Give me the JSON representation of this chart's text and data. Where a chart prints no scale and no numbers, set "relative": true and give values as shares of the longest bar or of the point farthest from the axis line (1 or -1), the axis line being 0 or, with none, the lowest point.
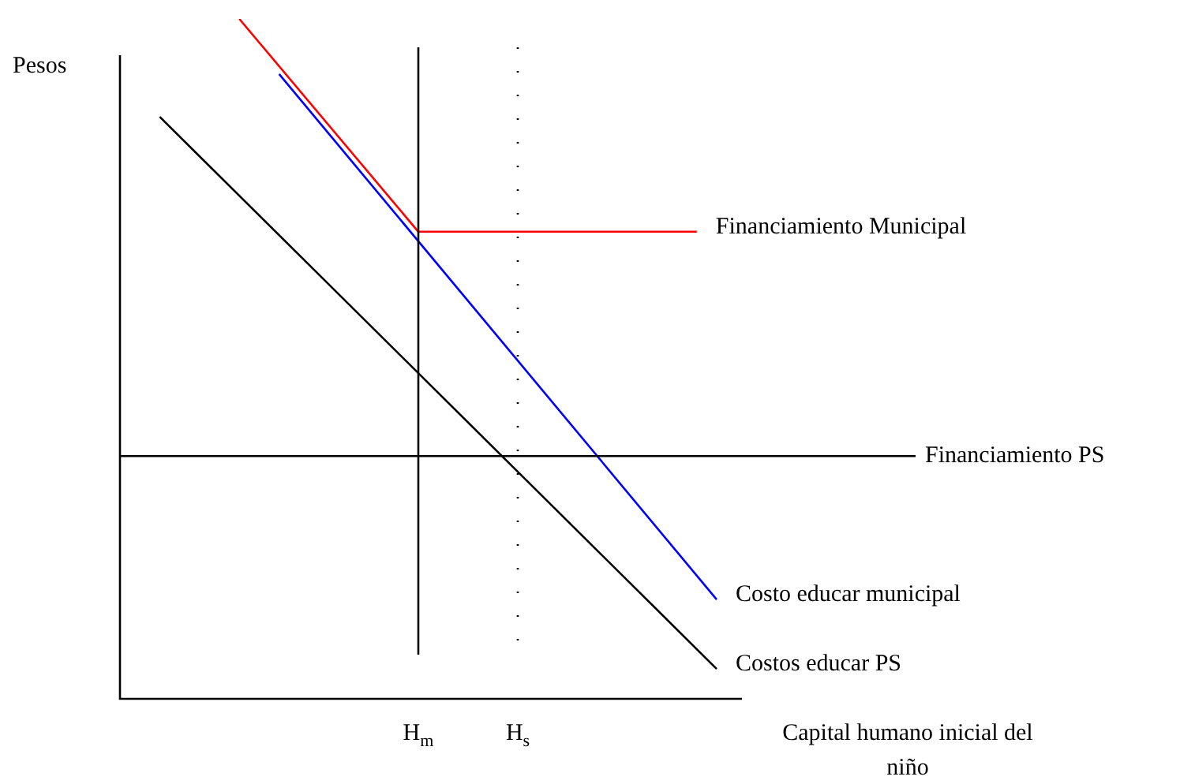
{
  "chart_data": {
    "type": "line",
    "relative": true,
    "xlabel": "Capital humano inicial del niño",
    "ylabel": "Pesos",
    "tick_labels": "x",
    "legend": false,
    "grid": false,
    "marker": "none",
    "categories": [
      null,
      null,
      null,
      null,
      null,
      null,
      null,
      null,
      null,
      null,
      null,
      null,
      null,
      null,
      null,
      "H$_{m}$",
      null,
      null,
      null,
      null,
      "H$_{s}$",
      null,
      null,
      null,
      null,
      null,
      null,
      null,
      null,
      null,
      null,
      null,
      null,
      null,
      null,
      null,
      null,
      null,
      null,
      null,
      null
    ],
    "series": [
      {
        "name": "Financiamiento Municipal",
        "color": "#ff0000",
        "values": [
          null,
          null,
          null,
          null,
          null,
          null,
          1,
          null,
          null,
          null,
          null,
          null,
          null,
          null,
          null,
          0.687,
          null,
          null,
          null,
          null,
          null,
          null,
          null,
          null,
          null,
          null,
          null,
          null,
          null,
          0.687,
          null,
          null,
          null,
          null,
          null,
          null,
          null,
          null,
          null,
          null,
          null
        ]
      },
      {
        "name": "Costo educar municipal",
        "color": "#0000ff",
        "values": [
          null,
          null,
          null,
          null,
          null,
          null,
          null,
          null,
          0.919,
          null,
          null,
          null,
          null,
          null,
          null,
          null,
          null,
          null,
          null,
          null,
          null,
          null,
          null,
          null,
          null,
          null,
          null,
          null,
          null,
          null,
          0.146,
          null,
          null,
          null,
          null,
          null,
          null,
          null,
          null,
          null,
          null
        ]
      },
      {
        "name": "Costos educar PS",
        "color": "#000000",
        "values": [
          null,
          null,
          0.856,
          null,
          null,
          null,
          null,
          null,
          null,
          null,
          null,
          null,
          null,
          null,
          null,
          null,
          null,
          null,
          null,
          null,
          null,
          null,
          null,
          null,
          null,
          null,
          null,
          null,
          null,
          null,
          0.044,
          null,
          null,
          null,
          null,
          null,
          null,
          null,
          null,
          null,
          null
        ]
      }
    ],
    "ref_lines": [
      {
        "axis": "y",
        "value": 0.357,
        "label": "Financiamiento PS",
        "color": "#000000",
        "line_style": "solid"
      },
      {
        "axis": "x",
        "value": "H$_{m}$",
        "color": "#000000",
        "line_style": "solid"
      },
      {
        "axis": "x",
        "value": "H$_{s}$",
        "color": "#000000",
        "line_style": "dotted"
      }
    ]
  }
}
